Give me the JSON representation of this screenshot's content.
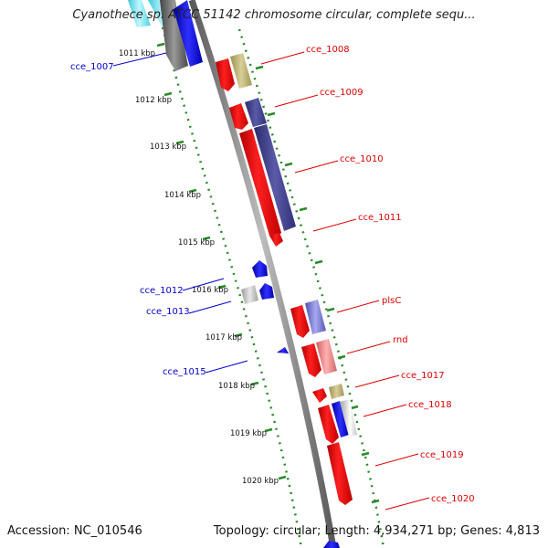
{
  "title": "Cyanothece sp. ATCC 51142 chromosome circular, complete sequ...",
  "accession": "Accession: NC_010546",
  "summary": "Topology: circular; Length: 4,934,271 bp; Genes: 4,813",
  "ruler": {
    "ticks": [
      "1011 kbp",
      "1012 kbp",
      "1013 kbp",
      "1014 kbp",
      "1015 kbp",
      "1016 kbp",
      "1017 kbp",
      "1018 kbp",
      "1019 kbp",
      "1020 kbp"
    ]
  },
  "gene_labels": [
    {
      "name": "cce_1007",
      "strand": "minus"
    },
    {
      "name": "cce_1008",
      "strand": "plus"
    },
    {
      "name": "cce_1009",
      "strand": "plus"
    },
    {
      "name": "cce_1010",
      "strand": "plus"
    },
    {
      "name": "cce_1011",
      "strand": "plus"
    },
    {
      "name": "cce_1012",
      "strand": "minus"
    },
    {
      "name": "cce_1013",
      "strand": "minus"
    },
    {
      "name": "plsC",
      "strand": "plus"
    },
    {
      "name": "rnd",
      "strand": "plus"
    },
    {
      "name": "cce_1015",
      "strand": "minus"
    },
    {
      "name": "cce_1017",
      "strand": "plus"
    },
    {
      "name": "cce_1018",
      "strand": "plus"
    },
    {
      "name": "cce_1019",
      "strand": "plus"
    },
    {
      "name": "cce_1020",
      "strand": "plus"
    }
  ],
  "colors": {
    "plus_label": "#dd0000",
    "minus_label": "#0000cc",
    "ruler": "#2a8a2a",
    "backbone": "#8a8a8a"
  }
}
